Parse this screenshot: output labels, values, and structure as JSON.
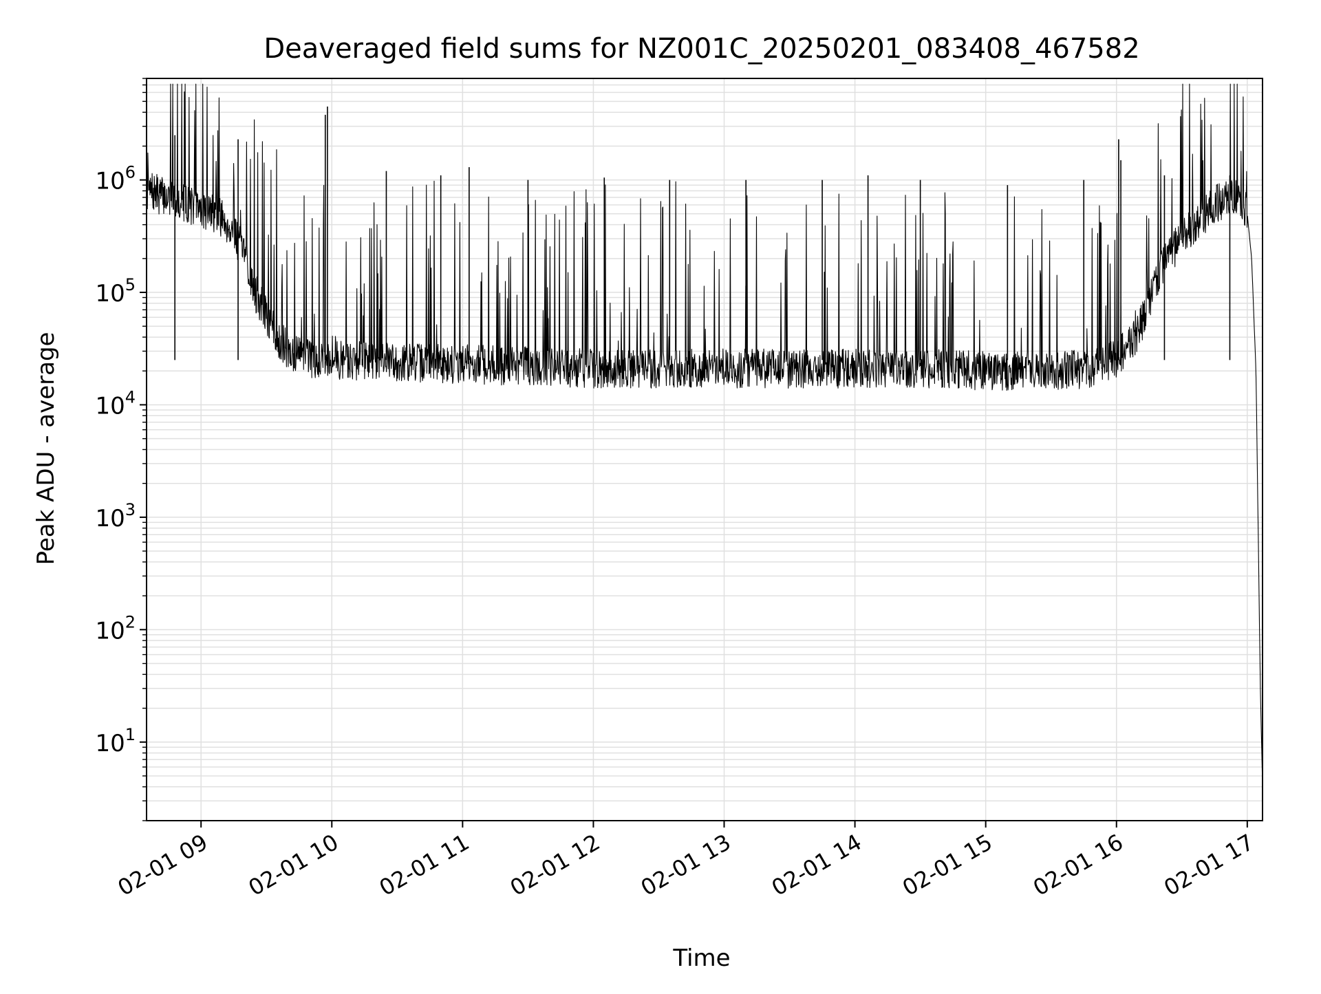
{
  "chart_data": {
    "type": "line",
    "title": "Deaveraged field sums for NZ001C_20250201_083408_467582",
    "xlabel": "Time",
    "ylabel": "Peak ADU - average",
    "y_scale": "log",
    "ylim": [
      2,
      8000000
    ],
    "xlim": [
      "2025-02-01 08:35",
      "2025-02-01 17:07"
    ],
    "grid": true,
    "line_color": "#000000",
    "grid_color": "#e0e0e0",
    "x_ticks": [
      {
        "value": "2025-02-01 09:00",
        "label": "02-01 09"
      },
      {
        "value": "2025-02-01 10:00",
        "label": "02-01 10"
      },
      {
        "value": "2025-02-01 11:00",
        "label": "02-01 11"
      },
      {
        "value": "2025-02-01 12:00",
        "label": "02-01 12"
      },
      {
        "value": "2025-02-01 13:00",
        "label": "02-01 13"
      },
      {
        "value": "2025-02-01 14:00",
        "label": "02-01 14"
      },
      {
        "value": "2025-02-01 15:00",
        "label": "02-01 15"
      },
      {
        "value": "2025-02-01 16:00",
        "label": "02-01 16"
      },
      {
        "value": "2025-02-01 17:00",
        "label": "02-01 17"
      }
    ],
    "y_ticks": [
      {
        "value": 10,
        "base": "10",
        "exp": "1"
      },
      {
        "value": 100,
        "base": "10",
        "exp": "2"
      },
      {
        "value": 1000,
        "base": "10",
        "exp": "3"
      },
      {
        "value": 10000,
        "base": "10",
        "exp": "4"
      },
      {
        "value": 100000,
        "base": "10",
        "exp": "5"
      },
      {
        "value": 1000000,
        "base": "10",
        "exp": "6"
      }
    ],
    "series": [
      {
        "x": [
          "2025-02-01 08:35",
          "2025-02-01 08:40",
          "2025-02-01 08:45",
          "2025-02-01 08:50",
          "2025-02-01 08:55",
          "2025-02-01 09:00",
          "2025-02-01 09:05",
          "2025-02-01 09:10",
          "2025-02-01 09:15",
          "2025-02-01 09:20",
          "2025-02-01 09:25",
          "2025-02-01 09:30",
          "2025-02-01 09:35",
          "2025-02-01 09:40",
          "2025-02-01 09:45",
          "2025-02-01 09:50",
          "2025-02-01 09:55",
          "2025-02-01 10:00",
          "2025-02-01 10:30",
          "2025-02-01 11:00",
          "2025-02-01 11:30",
          "2025-02-01 12:00",
          "2025-02-01 12:30",
          "2025-02-01 13:00",
          "2025-02-01 13:30",
          "2025-02-01 14:00",
          "2025-02-01 14:30",
          "2025-02-01 15:00",
          "2025-02-01 15:30",
          "2025-02-01 15:50",
          "2025-02-01 16:00",
          "2025-02-01 16:05",
          "2025-02-01 16:10",
          "2025-02-01 16:15",
          "2025-02-01 16:20",
          "2025-02-01 16:25",
          "2025-02-01 16:30",
          "2025-02-01 16:35",
          "2025-02-01 16:40",
          "2025-02-01 16:45",
          "2025-02-01 16:50",
          "2025-02-01 16:55",
          "2025-02-01 17:00",
          "2025-02-01 17:02",
          "2025-02-01 17:04",
          "2025-02-01 17:05",
          "2025-02-01 17:06",
          "2025-02-01 17:07"
        ],
        "y": [
          800000,
          750000,
          700000,
          650000,
          600000,
          550000,
          520000,
          450000,
          350000,
          200000,
          100000,
          60000,
          40000,
          30000,
          28000,
          26000,
          26000,
          25000,
          24000,
          23000,
          22000,
          21000,
          21000,
          21000,
          21000,
          21000,
          21000,
          20000,
          20000,
          21000,
          26000,
          32000,
          45000,
          80000,
          150000,
          220000,
          300000,
          380000,
          480000,
          600000,
          700000,
          750000,
          500000,
          200000,
          20000,
          800,
          30,
          4
        ]
      }
    ],
    "spikes": {
      "x": [
        "2025-02-01 08:48",
        "2025-02-01 09:17",
        "2025-02-01 09:57",
        "2025-02-01 09:58",
        "2025-02-01 10:25",
        "2025-02-01 10:50",
        "2025-02-01 11:03",
        "2025-02-01 11:30",
        "2025-02-01 12:05",
        "2025-02-01 12:35",
        "2025-02-01 13:10",
        "2025-02-01 13:45",
        "2025-02-01 14:06",
        "2025-02-01 14:30",
        "2025-02-01 15:10",
        "2025-02-01 15:45",
        "2025-02-01 16:01",
        "2025-02-01 16:02",
        "2025-02-01 16:22",
        "2025-02-01 16:52"
      ],
      "y": [
        2500000,
        2300000,
        3800000,
        4500000,
        1200000,
        1100000,
        1300000,
        1000000,
        1050000,
        1000000,
        1000000,
        1000000,
        1100000,
        1000000,
        900000,
        1000000,
        2300000,
        1500000,
        1100000,
        1100000
      ]
    }
  }
}
